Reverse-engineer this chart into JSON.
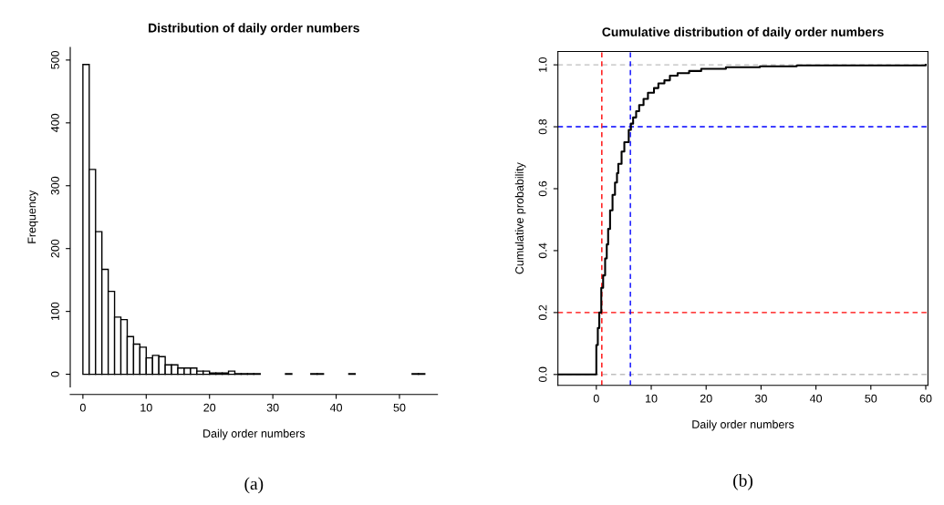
{
  "chart_data": [
    {
      "type": "histogram",
      "title": "Distribution of daily order numbers",
      "xlabel": "Daily order numbers",
      "ylabel": "Frequency",
      "bins": [
        0,
        1,
        2,
        3,
        4,
        5,
        6,
        7,
        8,
        9,
        10,
        11,
        12,
        13,
        14,
        15,
        16,
        17,
        18,
        19,
        20,
        21,
        22,
        23,
        24,
        25,
        26,
        27,
        28,
        29,
        30,
        31,
        32,
        33,
        34,
        35,
        36,
        37,
        38,
        39,
        40,
        41,
        42,
        43,
        44,
        45,
        46,
        47,
        48,
        49,
        50,
        51,
        52,
        53,
        54
      ],
      "values": [
        493,
        326,
        227,
        167,
        132,
        91,
        87,
        60,
        48,
        43,
        26,
        30,
        28,
        15,
        15,
        10,
        10,
        10,
        5,
        5,
        2,
        2,
        2,
        5,
        1,
        1,
        1,
        1,
        0,
        0,
        0,
        0,
        1,
        0,
        0,
        0,
        1,
        1,
        0,
        0,
        0,
        0,
        1,
        0,
        0,
        0,
        0,
        0,
        0,
        0,
        0,
        0,
        1,
        1
      ],
      "color": "#ffffff",
      "xlim": [
        -2,
        56
      ],
      "ylim": [
        -20,
        520
      ],
      "xticks": [
        0,
        10,
        20,
        30,
        40,
        50
      ],
      "yticks": [
        0,
        100,
        200,
        300,
        400,
        500
      ],
      "grid": false,
      "annotations": [
        "(a)"
      ]
    },
    {
      "type": "step",
      "title": "Cumulative distribution of daily order numbers",
      "xlabel": "Daily order numbers",
      "ylabel": "Cumulative probability",
      "series": [
        {
          "color": "#000000",
          "x": [
            -7,
            0,
            0.27,
            0.54,
            0.9,
            1.24,
            1.6,
            1.9,
            2.15,
            2.5,
            2.95,
            3.4,
            3.76,
            4.0,
            4.6,
            5.1,
            5.9,
            6.3,
            6.7,
            7.25,
            7.8,
            8.6,
            9.4,
            10.5,
            11.3,
            12.4,
            13.4,
            14.8,
            16.9,
            19.1,
            23.6,
            29.8,
            36.5,
            60
          ],
          "values": [
            0,
            0.095,
            0.15,
            0.2,
            0.28,
            0.32,
            0.375,
            0.42,
            0.47,
            0.53,
            0.58,
            0.62,
            0.65,
            0.68,
            0.72,
            0.75,
            0.79,
            0.81,
            0.83,
            0.85,
            0.87,
            0.89,
            0.91,
            0.925,
            0.94,
            0.95,
            0.965,
            0.973,
            0.98,
            0.987,
            0.992,
            0.995,
            0.998,
            1.0
          ]
        }
      ],
      "ref_lines": [
        {
          "axis": "y",
          "value": 0,
          "color": "#bebebe",
          "line_style": "dashed"
        },
        {
          "axis": "y",
          "value": 1,
          "color": "#bebebe",
          "line_style": "dashed"
        },
        {
          "axis": "x",
          "value": 1,
          "color": "#ff0000",
          "line_style": "dashed"
        },
        {
          "axis": "y",
          "value": 0.2,
          "color": "#ff0000",
          "line_style": "dashed"
        },
        {
          "axis": "x",
          "value": 6.2,
          "color": "#0000ff",
          "line_style": "dashed"
        },
        {
          "axis": "y",
          "value": 0.8,
          "color": "#0000ff",
          "line_style": "dashed"
        }
      ],
      "xlim": [
        -7,
        60.4
      ],
      "ylim": [
        -0.035,
        1.043
      ],
      "xticks": [
        0,
        10,
        20,
        30,
        40,
        50,
        60
      ],
      "yticks": [
        {
          "value": 0,
          "label": "0.0"
        },
        0.2,
        0.4,
        0.6,
        0.8,
        {
          "value": 1,
          "label": "1.0"
        }
      ],
      "grid": false,
      "annotations": [
        "(b)"
      ]
    }
  ]
}
